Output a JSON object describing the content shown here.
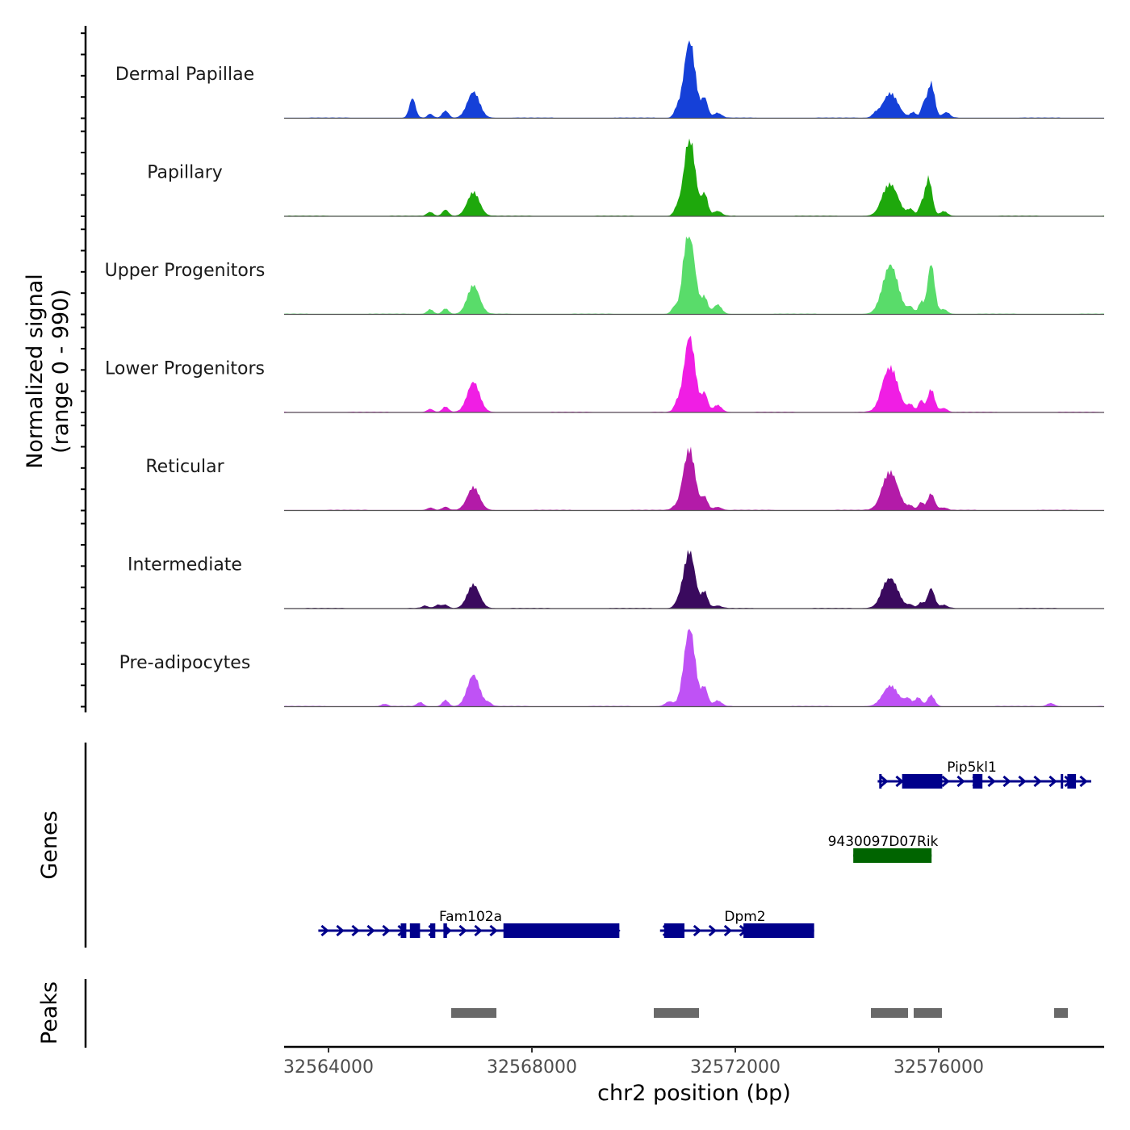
{
  "chart_data": {
    "type": "area",
    "title": "",
    "region": {
      "chrom": "chr2",
      "start": 32563127,
      "end": 32579254
    },
    "xlabel": "chr2 position (bp)",
    "x_ticks": [
      32564000,
      32568000,
      32572000,
      32576000
    ],
    "x_tick_labels": [
      "32564000",
      "32568000",
      "32572000",
      "32576000"
    ],
    "ylabel_line1": "Normalized signal",
    "ylabel_line2": "(range 0 - 990)",
    "ylim": [
      0,
      990
    ],
    "coverage_tracks": [
      {
        "name": "Dermal Papillae",
        "color": "#1540d8",
        "peaks": [
          [
            32565650,
            60,
            250
          ],
          [
            32566000,
            50,
            50
          ],
          [
            32566300,
            60,
            90
          ],
          [
            32566850,
            120,
            330
          ],
          [
            32570850,
            60,
            90
          ],
          [
            32571100,
            110,
            990
          ],
          [
            32571400,
            60,
            240
          ],
          [
            32571650,
            80,
            60
          ],
          [
            32574750,
            60,
            40
          ],
          [
            32575050,
            150,
            310
          ],
          [
            32575500,
            60,
            70
          ],
          [
            32575700,
            50,
            160
          ],
          [
            32575850,
            70,
            440
          ],
          [
            32576150,
            70,
            70
          ]
        ]
      },
      {
        "name": "Papillary",
        "color": "#1ea80c",
        "peaks": [
          [
            32566000,
            60,
            50
          ],
          [
            32566300,
            60,
            80
          ],
          [
            32566850,
            120,
            300
          ],
          [
            32570850,
            60,
            80
          ],
          [
            32571100,
            110,
            1000
          ],
          [
            32571400,
            60,
            270
          ],
          [
            32571650,
            80,
            60
          ],
          [
            32574900,
            60,
            30
          ],
          [
            32575050,
            150,
            400
          ],
          [
            32575450,
            60,
            80
          ],
          [
            32575650,
            50,
            120
          ],
          [
            32575800,
            70,
            480
          ],
          [
            32576100,
            70,
            60
          ]
        ]
      },
      {
        "name": "Upper Progenitors",
        "color": "#59dc6a",
        "peaks": [
          [
            32566000,
            60,
            60
          ],
          [
            32566300,
            60,
            70
          ],
          [
            32566850,
            120,
            360
          ],
          [
            32570800,
            60,
            80
          ],
          [
            32571000,
            60,
            160
          ],
          [
            32571100,
            110,
            980
          ],
          [
            32571400,
            60,
            200
          ],
          [
            32571650,
            80,
            120
          ],
          [
            32575050,
            150,
            620
          ],
          [
            32575450,
            60,
            80
          ],
          [
            32575650,
            50,
            150
          ],
          [
            32575850,
            70,
            640
          ],
          [
            32576100,
            70,
            60
          ]
        ]
      },
      {
        "name": "Lower Progenitors",
        "color": "#f01ee4",
        "peaks": [
          [
            32566000,
            60,
            40
          ],
          [
            32566300,
            60,
            70
          ],
          [
            32566850,
            120,
            380
          ],
          [
            32570850,
            60,
            90
          ],
          [
            32571100,
            110,
            960
          ],
          [
            32571400,
            60,
            230
          ],
          [
            32571650,
            80,
            90
          ],
          [
            32574900,
            60,
            40
          ],
          [
            32575050,
            150,
            560
          ],
          [
            32575450,
            60,
            90
          ],
          [
            32575650,
            50,
            150
          ],
          [
            32575850,
            70,
            290
          ],
          [
            32576100,
            70,
            50
          ]
        ]
      },
      {
        "name": "Reticular",
        "color": "#b31ba8",
        "peaks": [
          [
            32566000,
            60,
            30
          ],
          [
            32566300,
            60,
            40
          ],
          [
            32566850,
            120,
            290
          ],
          [
            32570800,
            60,
            40
          ],
          [
            32570950,
            60,
            80
          ],
          [
            32571100,
            110,
            770
          ],
          [
            32571400,
            60,
            160
          ],
          [
            32571650,
            80,
            40
          ],
          [
            32574900,
            60,
            30
          ],
          [
            32575050,
            150,
            480
          ],
          [
            32575450,
            60,
            50
          ],
          [
            32575650,
            50,
            100
          ],
          [
            32575850,
            70,
            210
          ],
          [
            32576100,
            70,
            30
          ]
        ]
      },
      {
        "name": "Intermediate",
        "color": "#3a0a5e",
        "peaks": [
          [
            32565900,
            60,
            30
          ],
          [
            32566150,
            60,
            40
          ],
          [
            32566300,
            60,
            40
          ],
          [
            32566850,
            120,
            300
          ],
          [
            32570850,
            60,
            50
          ],
          [
            32570950,
            60,
            50
          ],
          [
            32571100,
            110,
            720
          ],
          [
            32571400,
            60,
            200
          ],
          [
            32571650,
            80,
            30
          ],
          [
            32574900,
            60,
            30
          ],
          [
            32575050,
            150,
            380
          ],
          [
            32575450,
            60,
            40
          ],
          [
            32575650,
            50,
            70
          ],
          [
            32575850,
            70,
            250
          ],
          [
            32576100,
            70,
            40
          ]
        ]
      },
      {
        "name": "Pre-adipocytes",
        "color": "#bf52f5",
        "peaks": [
          [
            32565100,
            60,
            30
          ],
          [
            32565800,
            60,
            50
          ],
          [
            32566300,
            60,
            80
          ],
          [
            32566850,
            120,
            400
          ],
          [
            32567150,
            60,
            40
          ],
          [
            32570700,
            80,
            60
          ],
          [
            32571100,
            110,
            1000
          ],
          [
            32571400,
            60,
            230
          ],
          [
            32571650,
            80,
            70
          ],
          [
            32575050,
            150,
            260
          ],
          [
            32575400,
            70,
            90
          ],
          [
            32575600,
            60,
            110
          ],
          [
            32575850,
            70,
            140
          ],
          [
            32578200,
            70,
            40
          ]
        ]
      }
    ],
    "genes": [
      {
        "name": "Pip5kl1",
        "color": "#00008b",
        "row": 1,
        "strand": "+",
        "start": 32574800,
        "end": 32579000,
        "exons": [
          [
            32574830,
            32574860
          ],
          [
            32575280,
            32576070
          ],
          [
            32576670,
            32576860
          ],
          [
            32578400,
            32578430
          ],
          [
            32578530,
            32578700
          ]
        ]
      },
      {
        "name": "9430097D07Rik",
        "color": "#006400",
        "row": 2,
        "strand": "-",
        "start": 32574320,
        "end": 32575860,
        "exons": [
          [
            32574320,
            32575860
          ]
        ]
      },
      {
        "name": "Fam102a",
        "color": "#00008b",
        "row": 3,
        "strand": "+",
        "start": 32563800,
        "end": 32569720,
        "exons": [
          [
            32565420,
            32565530
          ],
          [
            32565600,
            32565800
          ],
          [
            32566000,
            32566100
          ],
          [
            32566260,
            32566330
          ],
          [
            32567440,
            32569720
          ]
        ]
      },
      {
        "name": "Dpm2",
        "color": "#00008b",
        "row": 3,
        "strand": "+",
        "start": 32570520,
        "end": 32573550,
        "exons": [
          [
            32570600,
            32571000
          ],
          [
            32572160,
            32573550
          ]
        ]
      }
    ],
    "peaks_track": {
      "label": "Peaks",
      "color": "#696969",
      "regions": [
        [
          32566413,
          32567302
        ],
        [
          32570397,
          32571286
        ],
        [
          32574667,
          32575397
        ],
        [
          32575508,
          32576063
        ],
        [
          32578270,
          32578540
        ]
      ]
    },
    "genes_track_label": "Genes"
  }
}
